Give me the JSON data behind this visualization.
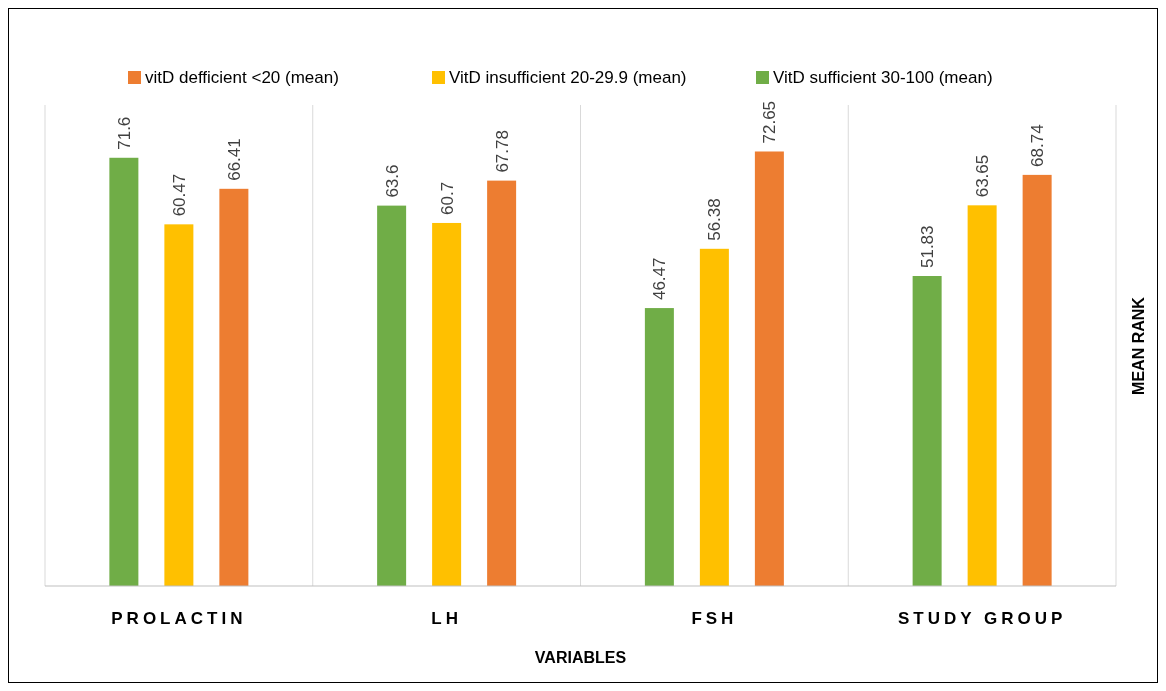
{
  "chart_data": {
    "type": "bar",
    "xlabel": "VARIABLES",
    "ylabel": "MEAN RANK",
    "categories": [
      "PROLACTIN",
      "LH",
      "FSH",
      "STUDY GROUP"
    ],
    "series": [
      {
        "name": "VitD sufficient 30-100 (mean)",
        "color": "#70ad47",
        "values": [
          71.6,
          63.6,
          46.47,
          51.83
        ]
      },
      {
        "name": "VitD insufficient 20-29.9 (mean)",
        "color": "#ffc000",
        "values": [
          60.47,
          60.7,
          56.38,
          63.65
        ]
      },
      {
        "name": "vitD defficient <20 (mean)",
        "color": "#ed7d31",
        "values": [
          66.41,
          67.78,
          72.65,
          68.74
        ]
      }
    ],
    "data_labels": true,
    "grid": "x",
    "legend": "top"
  }
}
